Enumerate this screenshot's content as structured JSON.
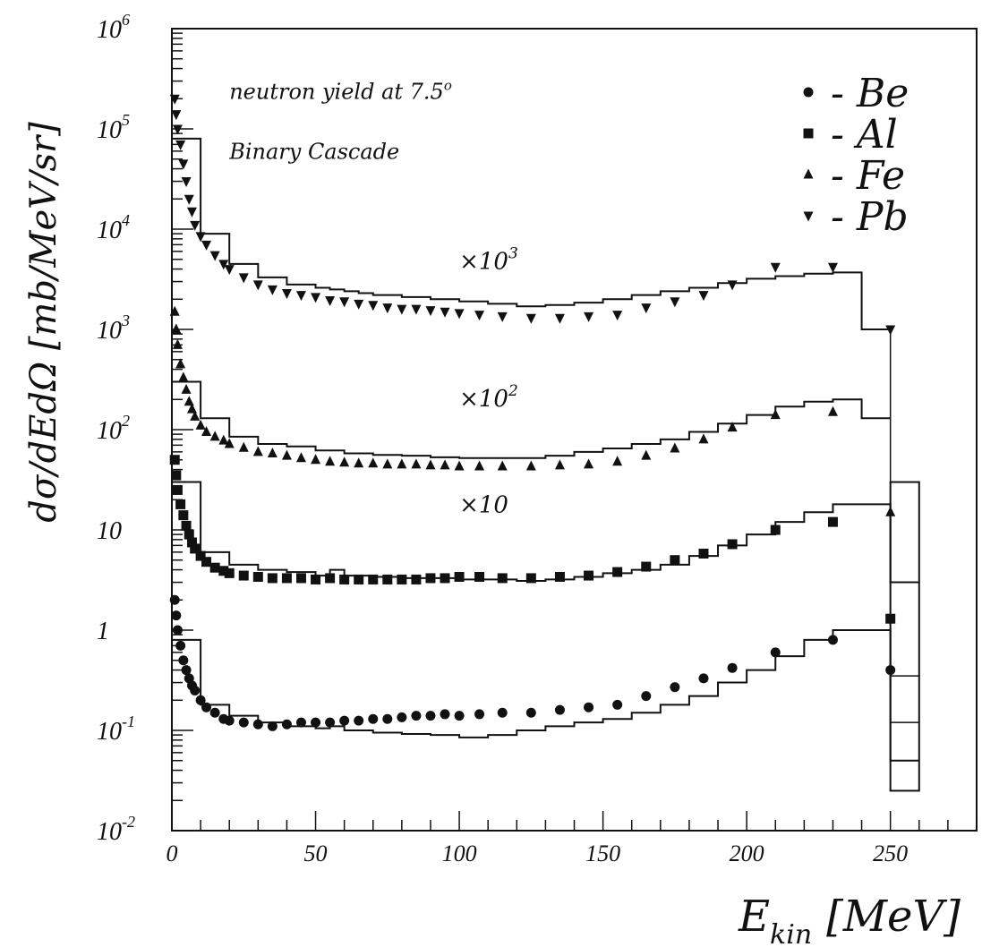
{
  "chart_data": {
    "type": "scatter",
    "xlabel_main": "E",
    "xlabel_sub": "kin",
    "xlabel_unit": "[MeV]",
    "ylabel": "dσ/dEdΩ [mb/MeV/sr]",
    "xlim": [
      0,
      280
    ],
    "ylim": [
      0.01,
      1000000
    ],
    "yscale": "log",
    "x_ticks": [
      {
        "value": 0,
        "label": "0"
      },
      {
        "value": 50,
        "label": "50"
      },
      {
        "value": 100,
        "label": "100"
      },
      {
        "value": 150,
        "label": "150"
      },
      {
        "value": 200,
        "label": "200"
      },
      {
        "value": 250,
        "label": "250"
      }
    ],
    "y_ticks": [
      {
        "exp": -2,
        "base": "10",
        "sup": "-2"
      },
      {
        "exp": -1,
        "base": "10",
        "sup": "-1"
      },
      {
        "exp": 0,
        "base": "1",
        "sup": ""
      },
      {
        "exp": 1,
        "base": "10",
        "sup": ""
      },
      {
        "exp": 2,
        "base": "10",
        "sup": "2"
      },
      {
        "exp": 3,
        "base": "10",
        "sup": "3"
      },
      {
        "exp": 4,
        "base": "10",
        "sup": "4"
      },
      {
        "exp": 5,
        "base": "10",
        "sup": "5"
      },
      {
        "exp": 6,
        "base": "10",
        "sup": "6"
      }
    ],
    "annotations": [
      {
        "text": "neutron yield at 7.5",
        "sup": "o",
        "x": 20,
        "y": 200000
      },
      {
        "text": "Binary Cascade",
        "x": 20,
        "y": 50000
      }
    ],
    "scale_labels": [
      {
        "text": "×10",
        "sup": "3",
        "x": 100,
        "y": 4000
      },
      {
        "text": "×10",
        "sup": "2",
        "x": 100,
        "y": 170
      },
      {
        "text": "×10",
        "sup": "",
        "x": 100,
        "y": 15
      }
    ],
    "legend": {
      "position": "top-right",
      "items": [
        {
          "marker": "circle",
          "label": "- Be"
        },
        {
          "marker": "square",
          "label": "- Al"
        },
        {
          "marker": "triangle-up",
          "label": "- Fe"
        },
        {
          "marker": "triangle-down",
          "label": "- Pb"
        }
      ]
    },
    "series": [
      {
        "name": "Be",
        "marker": "circle",
        "points": [
          [
            1,
            2
          ],
          [
            1.5,
            1.4
          ],
          [
            2,
            1.0
          ],
          [
            3,
            0.7
          ],
          [
            4,
            0.5
          ],
          [
            5,
            0.4
          ],
          [
            6,
            0.33
          ],
          [
            7,
            0.28
          ],
          [
            8,
            0.25
          ],
          [
            10,
            0.2
          ],
          [
            12,
            0.17
          ],
          [
            15,
            0.15
          ],
          [
            18,
            0.13
          ],
          [
            20,
            0.125
          ],
          [
            25,
            0.12
          ],
          [
            30,
            0.115
          ],
          [
            35,
            0.11
          ],
          [
            40,
            0.115
          ],
          [
            45,
            0.12
          ],
          [
            50,
            0.12
          ],
          [
            55,
            0.12
          ],
          [
            60,
            0.125
          ],
          [
            65,
            0.125
          ],
          [
            70,
            0.13
          ],
          [
            75,
            0.13
          ],
          [
            80,
            0.135
          ],
          [
            85,
            0.14
          ],
          [
            90,
            0.14
          ],
          [
            95,
            0.145
          ],
          [
            100,
            0.14
          ],
          [
            107,
            0.145
          ],
          [
            115,
            0.15
          ],
          [
            125,
            0.15
          ],
          [
            135,
            0.16
          ],
          [
            145,
            0.17
          ],
          [
            155,
            0.18
          ],
          [
            165,
            0.22
          ],
          [
            175,
            0.27
          ],
          [
            185,
            0.33
          ],
          [
            195,
            0.42
          ],
          [
            210,
            0.6
          ],
          [
            230,
            0.8
          ],
          [
            250,
            0.4
          ]
        ],
        "hist": {
          "edges": [
            0,
            10,
            20,
            30,
            40,
            50,
            55,
            60,
            65,
            70,
            80,
            90,
            100,
            110,
            120,
            130,
            140,
            150,
            160,
            170,
            180,
            190,
            200,
            210,
            220,
            230,
            240,
            250,
            260
          ],
          "values": [
            0.8,
            0.18,
            0.14,
            0.12,
            0.11,
            0.105,
            0.11,
            0.1,
            0.1,
            0.095,
            0.092,
            0.09,
            0.085,
            0.09,
            0.1,
            0.11,
            0.12,
            0.13,
            0.15,
            0.18,
            0.22,
            0.3,
            0.4,
            0.55,
            0.8,
            1.0,
            1.0,
            0.05
          ]
        }
      },
      {
        "name": "Al",
        "marker": "square",
        "points": [
          [
            1,
            50
          ],
          [
            1.5,
            35
          ],
          [
            2,
            25
          ],
          [
            3,
            18
          ],
          [
            4,
            14
          ],
          [
            5,
            11
          ],
          [
            6,
            9
          ],
          [
            7,
            7.5
          ],
          [
            8,
            6.5
          ],
          [
            10,
            5.5
          ],
          [
            12,
            4.8
          ],
          [
            15,
            4.2
          ],
          [
            18,
            3.9
          ],
          [
            20,
            3.7
          ],
          [
            25,
            3.5
          ],
          [
            30,
            3.4
          ],
          [
            35,
            3.3
          ],
          [
            40,
            3.3
          ],
          [
            45,
            3.3
          ],
          [
            50,
            3.2
          ],
          [
            55,
            3.3
          ],
          [
            60,
            3.2
          ],
          [
            65,
            3.2
          ],
          [
            70,
            3.2
          ],
          [
            75,
            3.2
          ],
          [
            80,
            3.2
          ],
          [
            85,
            3.2
          ],
          [
            90,
            3.3
          ],
          [
            95,
            3.3
          ],
          [
            100,
            3.4
          ],
          [
            107,
            3.4
          ],
          [
            115,
            3.3
          ],
          [
            125,
            3.3
          ],
          [
            135,
            3.4
          ],
          [
            145,
            3.5
          ],
          [
            155,
            3.8
          ],
          [
            165,
            4.3
          ],
          [
            175,
            5.0
          ],
          [
            185,
            5.8
          ],
          [
            195,
            7.2
          ],
          [
            210,
            10
          ],
          [
            230,
            12
          ],
          [
            250,
            1.3
          ]
        ],
        "hist": {
          "edges": [
            0,
            10,
            20,
            30,
            40,
            50,
            55,
            60,
            65,
            70,
            80,
            90,
            100,
            110,
            120,
            130,
            140,
            150,
            160,
            170,
            180,
            190,
            200,
            210,
            220,
            230,
            240,
            250,
            260
          ],
          "values": [
            30,
            6,
            4.5,
            4,
            3.8,
            3.5,
            4,
            3.5,
            3.5,
            3.4,
            3.3,
            3.3,
            3.2,
            3.2,
            3.1,
            3.2,
            3.4,
            3.7,
            4,
            4.5,
            5.5,
            7,
            9,
            12,
            15,
            18,
            18,
            3
          ]
        }
      },
      {
        "name": "Fe",
        "marker": "triangle-up",
        "points": [
          [
            1,
            1500
          ],
          [
            1.5,
            1000
          ],
          [
            2,
            700
          ],
          [
            3,
            450
          ],
          [
            4,
            330
          ],
          [
            5,
            250
          ],
          [
            6,
            190
          ],
          [
            7,
            160
          ],
          [
            8,
            135
          ],
          [
            10,
            110
          ],
          [
            12,
            95
          ],
          [
            15,
            85
          ],
          [
            18,
            78
          ],
          [
            20,
            72
          ],
          [
            25,
            66
          ],
          [
            30,
            60
          ],
          [
            35,
            58
          ],
          [
            40,
            55
          ],
          [
            45,
            52
          ],
          [
            50,
            50
          ],
          [
            55,
            48
          ],
          [
            60,
            47
          ],
          [
            65,
            46
          ],
          [
            70,
            46
          ],
          [
            75,
            45
          ],
          [
            80,
            45
          ],
          [
            85,
            45
          ],
          [
            90,
            44
          ],
          [
            95,
            44
          ],
          [
            100,
            43
          ],
          [
            107,
            43
          ],
          [
            115,
            43
          ],
          [
            125,
            43
          ],
          [
            135,
            44
          ],
          [
            145,
            45
          ],
          [
            155,
            48
          ],
          [
            165,
            55
          ],
          [
            175,
            65
          ],
          [
            185,
            80
          ],
          [
            195,
            105
          ],
          [
            210,
            140
          ],
          [
            230,
            150
          ],
          [
            250,
            15
          ]
        ],
        "hist": {
          "edges": [
            0,
            10,
            20,
            30,
            40,
            50,
            55,
            60,
            65,
            70,
            80,
            90,
            100,
            110,
            120,
            130,
            140,
            150,
            160,
            170,
            180,
            190,
            200,
            210,
            220,
            230,
            240,
            250
          ],
          "values": [
            300,
            130,
            85,
            72,
            68,
            62,
            62,
            58,
            58,
            56,
            55,
            53,
            52,
            52,
            52,
            55,
            60,
            65,
            72,
            80,
            95,
            115,
            140,
            170,
            190,
            200,
            130
          ]
        }
      },
      {
        "name": "Pb",
        "marker": "triangle-down",
        "points": [
          [
            1,
            200000
          ],
          [
            1.5,
            140000
          ],
          [
            2,
            100000
          ],
          [
            3,
            70000
          ],
          [
            4,
            45000
          ],
          [
            5,
            30000
          ],
          [
            6,
            20000
          ],
          [
            7,
            15000
          ],
          [
            8,
            11000
          ],
          [
            10,
            8500
          ],
          [
            12,
            7000
          ],
          [
            15,
            5500
          ],
          [
            18,
            4500
          ],
          [
            20,
            4000
          ],
          [
            25,
            3300
          ],
          [
            30,
            2800
          ],
          [
            35,
            2500
          ],
          [
            40,
            2300
          ],
          [
            45,
            2200
          ],
          [
            50,
            2100
          ],
          [
            55,
            1950
          ],
          [
            60,
            1900
          ],
          [
            65,
            1800
          ],
          [
            70,
            1750
          ],
          [
            75,
            1650
          ],
          [
            80,
            1600
          ],
          [
            85,
            1600
          ],
          [
            90,
            1550
          ],
          [
            95,
            1500
          ],
          [
            100,
            1450
          ],
          [
            107,
            1400
          ],
          [
            115,
            1350
          ],
          [
            125,
            1300
          ],
          [
            135,
            1300
          ],
          [
            145,
            1350
          ],
          [
            155,
            1400
          ],
          [
            165,
            1650
          ],
          [
            175,
            1900
          ],
          [
            185,
            2200
          ],
          [
            195,
            2800
          ],
          [
            210,
            4200
          ],
          [
            230,
            4200
          ],
          [
            250,
            1000
          ]
        ],
        "hist": {
          "edges": [
            0,
            10,
            20,
            30,
            40,
            50,
            55,
            60,
            65,
            70,
            80,
            90,
            100,
            110,
            120,
            130,
            140,
            150,
            160,
            170,
            180,
            190,
            200,
            210,
            220,
            230,
            240,
            250
          ],
          "values": [
            80000,
            9000,
            4500,
            3300,
            2800,
            2600,
            2500,
            2400,
            2300,
            2200,
            2100,
            2000,
            1900,
            1800,
            1700,
            1750,
            1850,
            2000,
            2200,
            2400,
            2600,
            2900,
            3200,
            3400,
            3600,
            3700,
            1000
          ]
        }
      }
    ]
  }
}
